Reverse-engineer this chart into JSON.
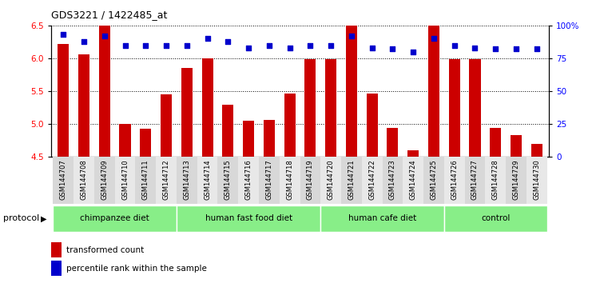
{
  "title": "GDS3221 / 1422485_at",
  "samples": [
    "GSM144707",
    "GSM144708",
    "GSM144709",
    "GSM144710",
    "GSM144711",
    "GSM144712",
    "GSM144713",
    "GSM144714",
    "GSM144715",
    "GSM144716",
    "GSM144717",
    "GSM144718",
    "GSM144719",
    "GSM144720",
    "GSM144721",
    "GSM144722",
    "GSM144723",
    "GSM144724",
    "GSM144725",
    "GSM144726",
    "GSM144727",
    "GSM144728",
    "GSM144729",
    "GSM144730"
  ],
  "red_values": [
    6.22,
    6.06,
    6.5,
    5.0,
    4.93,
    5.45,
    5.85,
    6.0,
    5.3,
    5.05,
    5.07,
    5.47,
    5.99,
    5.99,
    6.5,
    5.47,
    4.94,
    4.6,
    6.5,
    5.99,
    5.99,
    4.94,
    4.83,
    4.7
  ],
  "blue_percentiles": [
    93,
    88,
    92,
    85,
    85,
    85,
    85,
    90,
    88,
    83,
    85,
    83,
    85,
    85,
    92,
    83,
    82,
    80,
    90,
    85,
    83,
    82,
    82,
    82
  ],
  "group_info": [
    {
      "label": "chimpanzee diet",
      "start": 0,
      "end": 6
    },
    {
      "label": "human fast food diet",
      "start": 6,
      "end": 13
    },
    {
      "label": "human cafe diet",
      "start": 13,
      "end": 19
    },
    {
      "label": "control",
      "start": 19,
      "end": 24
    }
  ],
  "ylim_left": [
    4.5,
    6.5
  ],
  "ylim_right": [
    0,
    100
  ],
  "yticks_left": [
    4.5,
    5.0,
    5.5,
    6.0,
    6.5
  ],
  "yticks_right": [
    0,
    25,
    50,
    75,
    100
  ],
  "bar_color": "#cc0000",
  "dot_color": "#0000cc",
  "bar_bottom": 4.5,
  "group_color": "#88ee88",
  "background_color": "#ffffff"
}
